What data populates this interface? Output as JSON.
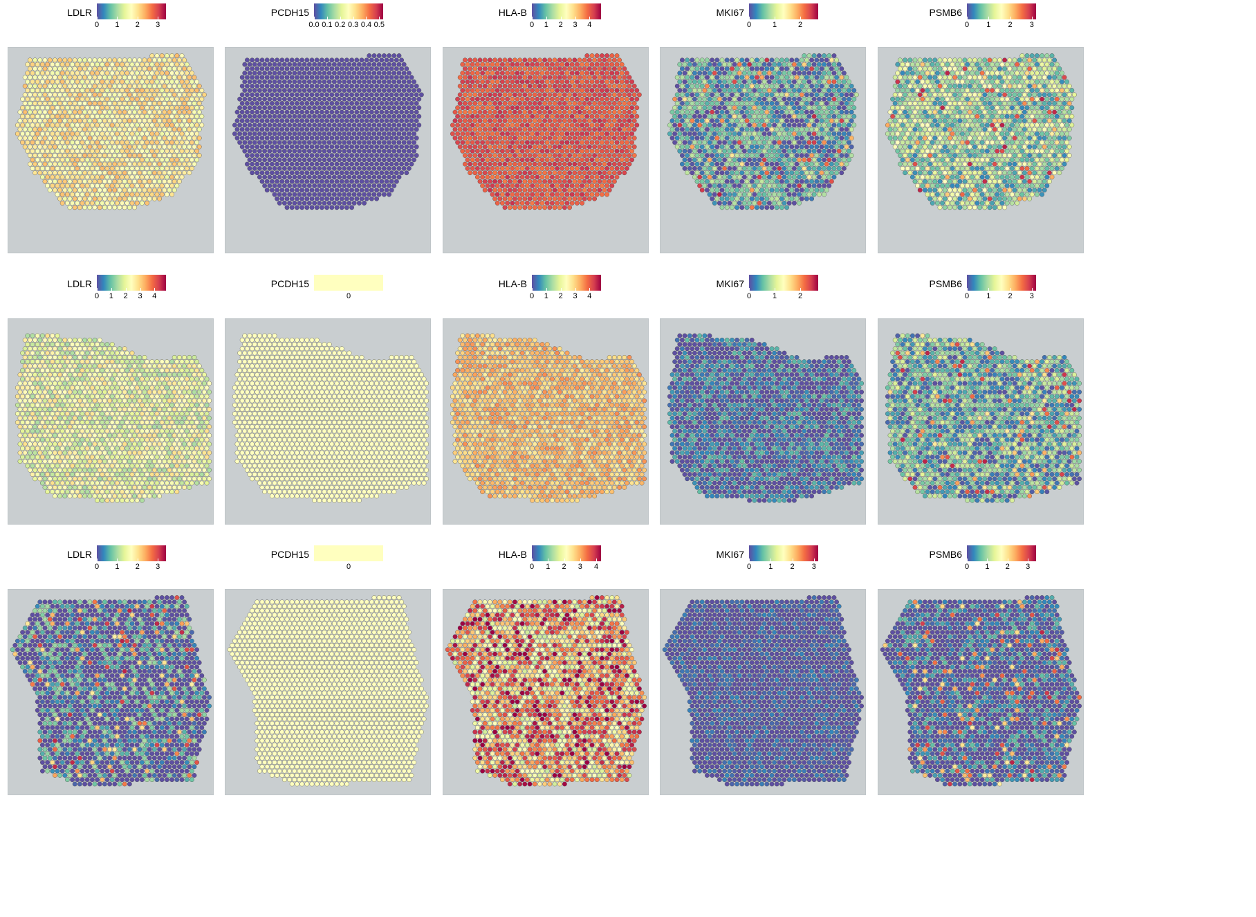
{
  "colors": {
    "palette": [
      "#5e4fa2",
      "#3288bd",
      "#66c2a5",
      "#abdda4",
      "#e6f598",
      "#ffffbf",
      "#fee08b",
      "#fdae61",
      "#f46d43",
      "#d53e4f",
      "#9e0142"
    ],
    "background_tissue": "#c9ced0"
  },
  "rows": [
    {
      "panels": [
        {
          "gene": "LDLR",
          "legend": {
            "min": 0,
            "max": 3.4,
            "ticks": [
              {
                "value": 0,
                "label": "0"
              },
              {
                "value": 1,
                "label": "1"
              },
              {
                "value": 2,
                "label": "2"
              },
              {
                "value": 3,
                "label": "3"
              }
            ]
          },
          "expression": {
            "dominant_level": 0.55,
            "spread": 0.12
          }
        },
        {
          "gene": "PCDH15",
          "legend": {
            "min": 0,
            "max": 0.53,
            "ticks": [
              {
                "value": 0,
                "label": "0.0"
              },
              {
                "value": 0.1,
                "label": "0.1"
              },
              {
                "value": 0.2,
                "label": "0.2"
              },
              {
                "value": 0.3,
                "label": "0.3"
              },
              {
                "value": 0.4,
                "label": "0.4"
              },
              {
                "value": 0.5,
                "label": "0.5"
              }
            ]
          },
          "expression": {
            "dominant_level": 0.0,
            "spread": 0.0
          }
        },
        {
          "gene": "HLA-B",
          "legend": {
            "min": 0,
            "max": 4.8,
            "ticks": [
              {
                "value": 0,
                "label": "0"
              },
              {
                "value": 1,
                "label": "1"
              },
              {
                "value": 2,
                "label": "2"
              },
              {
                "value": 3,
                "label": "3"
              },
              {
                "value": 4,
                "label": "4"
              }
            ]
          },
          "expression": {
            "dominant_level": 0.85,
            "spread": 0.07
          }
        },
        {
          "gene": "MKI67",
          "legend": {
            "min": 0,
            "max": 2.7,
            "ticks": [
              {
                "value": 0,
                "label": "0"
              },
              {
                "value": 1,
                "label": "1"
              },
              {
                "value": 2,
                "label": "2"
              }
            ]
          },
          "expression": {
            "dominant_level": 0.15,
            "spread": 0.2
          }
        },
        {
          "gene": "PSMB6",
          "legend": {
            "min": 0,
            "max": 3.2,
            "ticks": [
              {
                "value": 0,
                "label": "0"
              },
              {
                "value": 1,
                "label": "1"
              },
              {
                "value": 2,
                "label": "2"
              },
              {
                "value": 3,
                "label": "3"
              }
            ]
          },
          "expression": {
            "dominant_level": 0.3,
            "spread": 0.2
          }
        }
      ]
    },
    {
      "panels": [
        {
          "gene": "LDLR",
          "legend": {
            "min": 0,
            "max": 4.8,
            "ticks": [
              {
                "value": 0,
                "label": "0"
              },
              {
                "value": 1,
                "label": "1"
              },
              {
                "value": 2,
                "label": "2"
              },
              {
                "value": 3,
                "label": "3"
              },
              {
                "value": 4,
                "label": "4"
              }
            ]
          },
          "expression": {
            "dominant_level": 0.45,
            "spread": 0.15
          }
        },
        {
          "gene": "PCDH15",
          "legend": {
            "constant": true,
            "ticks": [
              {
                "value": 0,
                "label": "0"
              }
            ]
          },
          "expression": {
            "dominant_level": 0.5,
            "spread": 0.0
          }
        },
        {
          "gene": "HLA-B",
          "legend": {
            "min": 0,
            "max": 4.8,
            "ticks": [
              {
                "value": 0,
                "label": "0"
              },
              {
                "value": 1,
                "label": "1"
              },
              {
                "value": 2,
                "label": "2"
              },
              {
                "value": 3,
                "label": "3"
              },
              {
                "value": 4,
                "label": "4"
              }
            ]
          },
          "expression": {
            "dominant_level": 0.65,
            "spread": 0.1
          }
        },
        {
          "gene": "MKI67",
          "legend": {
            "min": 0,
            "max": 2.7,
            "ticks": [
              {
                "value": 0,
                "label": "0"
              },
              {
                "value": 1,
                "label": "1"
              },
              {
                "value": 2,
                "label": "2"
              }
            ]
          },
          "expression": {
            "dominant_level": 0.05,
            "spread": 0.15
          }
        },
        {
          "gene": "PSMB6",
          "legend": {
            "min": 0,
            "max": 3.2,
            "ticks": [
              {
                "value": 0,
                "label": "0"
              },
              {
                "value": 1,
                "label": "1"
              },
              {
                "value": 2,
                "label": "2"
              },
              {
                "value": 3,
                "label": "3"
              }
            ]
          },
          "expression": {
            "dominant_level": 0.2,
            "spread": 0.2
          }
        }
      ]
    },
    {
      "panels": [
        {
          "gene": "LDLR",
          "legend": {
            "min": 0,
            "max": 3.4,
            "ticks": [
              {
                "value": 0,
                "label": "0"
              },
              {
                "value": 1,
                "label": "1"
              },
              {
                "value": 2,
                "label": "2"
              },
              {
                "value": 3,
                "label": "3"
              }
            ]
          },
          "expression": {
            "dominant_level": 0.0,
            "spread": 0.3
          }
        },
        {
          "gene": "PCDH15",
          "legend": {
            "constant": true,
            "ticks": [
              {
                "value": 0,
                "label": "0"
              }
            ]
          },
          "expression": {
            "dominant_level": 0.5,
            "spread": 0.0
          }
        },
        {
          "gene": "HLA-B",
          "legend": {
            "min": 0,
            "max": 4.3,
            "ticks": [
              {
                "value": 0,
                "label": "0"
              },
              {
                "value": 1,
                "label": "1"
              },
              {
                "value": 2,
                "label": "2"
              },
              {
                "value": 3,
                "label": "3"
              },
              {
                "value": 4,
                "label": "4"
              }
            ]
          },
          "expression": {
            "dominant_level": 0.7,
            "spread": 0.35
          }
        },
        {
          "gene": "MKI67",
          "legend": {
            "min": 0,
            "max": 3.2,
            "ticks": [
              {
                "value": 0,
                "label": "0"
              },
              {
                "value": 1,
                "label": "1"
              },
              {
                "value": 2,
                "label": "2"
              },
              {
                "value": 3,
                "label": "3"
              }
            ]
          },
          "expression": {
            "dominant_level": 0.0,
            "spread": 0.1
          }
        },
        {
          "gene": "PSMB6",
          "legend": {
            "min": 0,
            "max": 3.4,
            "ticks": [
              {
                "value": 0,
                "label": "0"
              },
              {
                "value": 1,
                "label": "1"
              },
              {
                "value": 2,
                "label": "2"
              },
              {
                "value": 3,
                "label": "3"
              }
            ]
          },
          "expression": {
            "dominant_level": 0.0,
            "spread": 0.2
          }
        }
      ]
    }
  ]
}
